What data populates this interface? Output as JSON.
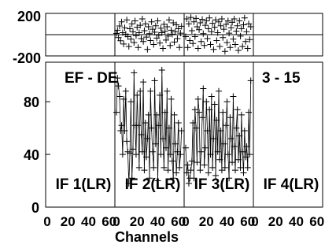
{
  "chart_data": {
    "type": "scatter",
    "baseline": "EF - DE",
    "scan": "3 - 15",
    "xlabel": "Channels",
    "ylabel": "",
    "x_ticks": [
      "0",
      "20",
      "40",
      "60"
    ],
    "phase_ticks": [
      "200",
      "-200"
    ],
    "amp_ticks": [
      "0",
      "40",
      "80"
    ],
    "phase_ylim": [
      -200,
      200
    ],
    "amp_ylim": [
      0,
      110
    ],
    "xlim": [
      0,
      64
    ],
    "grid": false,
    "panels": [
      {
        "label": "IF 1(LR)",
        "amplitude": [],
        "phase": []
      },
      {
        "label": "IF 2(LR)",
        "amplitude": [
          72,
          98,
          92,
          84,
          58,
          62,
          40,
          82,
          58,
          88,
          50,
          42,
          18,
          41,
          80,
          22,
          44,
          102,
          62,
          40,
          85,
          62,
          30,
          88,
          55,
          42,
          95,
          28,
          64,
          38,
          52,
          70,
          22,
          88,
          60,
          42,
          30,
          96,
          48,
          70,
          20,
          62,
          85,
          40,
          104,
          52,
          30,
          72,
          45,
          88,
          28,
          60,
          40,
          82,
          35,
          22,
          70,
          48,
          26,
          42,
          64,
          30,
          40,
          58
        ],
        "phase": [
          12,
          45,
          -30,
          88,
          -62,
          130,
          20,
          -95,
          70,
          5,
          150,
          -20,
          -120,
          60,
          -45,
          110,
          30,
          -80,
          140,
          -10,
          75,
          -130,
          20,
          95,
          -40,
          160,
          -70,
          40,
          110,
          -25,
          -150,
          80,
          10,
          -60,
          130,
          55,
          -100,
          25,
          90,
          -35,
          140,
          -5,
          -85,
          65,
          20,
          -140,
          105,
          35,
          -55,
          80,
          -15,
          150,
          -110,
          45,
          5,
          120,
          -75,
          30,
          100,
          -40,
          60,
          -130,
          15,
          85
        ]
      },
      {
        "label": "IF 3(LR)",
        "amplitude": [
          45,
          26,
          32,
          18,
          22,
          28,
          35,
          64,
          22,
          74,
          60,
          34,
          82,
          72,
          28,
          42,
          68,
          90,
          32,
          45,
          80,
          58,
          26,
          74,
          40,
          84,
          30,
          52,
          78,
          24,
          66,
          42,
          88,
          36,
          58,
          28,
          72,
          48,
          30,
          62,
          80,
          40,
          22,
          68,
          52,
          34,
          84,
          46,
          28,
          60,
          74,
          36,
          54,
          30,
          70,
          42,
          26,
          58,
          38,
          46,
          30,
          72,
          40,
          96
        ],
        "phase": [
          -20,
          160,
          -130,
          110,
          -60,
          175,
          40,
          -90,
          130,
          -20,
          165,
          80,
          -140,
          50,
          120,
          -70,
          155,
          10,
          -110,
          95,
          140,
          -40,
          60,
          170,
          -100,
          30,
          115,
          -150,
          75,
          150,
          -60,
          20,
          130,
          -120,
          90,
          160,
          -30,
          55,
          -170,
          105,
          -80,
          140,
          15,
          -130,
          70,
          125,
          -45,
          160,
          -100,
          35,
          90,
          -160,
          140,
          -15,
          60,
          -120,
          100,
          170,
          -70,
          30,
          -140,
          110,
          -50,
          80
        ]
      },
      {
        "label": "IF 4(LR)",
        "amplitude": [],
        "phase": []
      }
    ]
  }
}
